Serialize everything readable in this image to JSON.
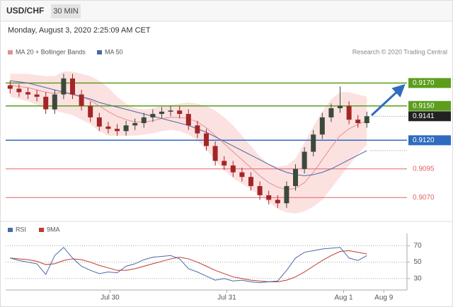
{
  "header": {
    "symbol": "USD/CHF",
    "interval": "30 MIN",
    "timestamp": "Monday, August 3, 2020 2:25:09 AM CET",
    "credit": "Research © 2020 Trading Central"
  },
  "chart_data": [
    {
      "type": "candlestick",
      "xlim": [
        -0.5,
        44.5
      ],
      "ylim": [
        0.9051,
        0.919
      ],
      "up_color": "#3b4a3b",
      "down_color": "#a32626",
      "open": [
        0.9168,
        0.9165,
        0.9162,
        0.916,
        0.9158,
        0.9147,
        0.916,
        0.9174,
        0.916,
        0.915,
        0.914,
        0.9132,
        0.913,
        0.9128,
        0.9133,
        0.9135,
        0.914,
        0.9143,
        0.9145,
        0.9146,
        0.9143,
        0.9133,
        0.9126,
        0.9115,
        0.9102,
        0.9098,
        0.9092,
        0.9088,
        0.908,
        0.9072,
        0.9068,
        0.9065,
        0.908,
        0.9095,
        0.911,
        0.9125,
        0.914,
        0.9148,
        0.915,
        0.9138,
        0.9135
      ],
      "high": [
        0.9172,
        0.9169,
        0.9166,
        0.9164,
        0.9162,
        0.9164,
        0.9178,
        0.9178,
        0.9164,
        0.9154,
        0.9144,
        0.9136,
        0.9134,
        0.9137,
        0.9139,
        0.9144,
        0.9147,
        0.9149,
        0.915,
        0.915,
        0.9147,
        0.9137,
        0.913,
        0.9119,
        0.9106,
        0.9102,
        0.9096,
        0.9092,
        0.9084,
        0.9076,
        0.9072,
        0.9084,
        0.9099,
        0.9114,
        0.9129,
        0.9144,
        0.9152,
        0.9167,
        0.9154,
        0.9142,
        0.9145
      ],
      "low": [
        0.9161,
        0.9158,
        0.9156,
        0.9154,
        0.9143,
        0.9143,
        0.9156,
        0.9156,
        0.9146,
        0.9136,
        0.9128,
        0.9126,
        0.9124,
        0.9124,
        0.9129,
        0.9131,
        0.9136,
        0.9139,
        0.9141,
        0.9139,
        0.9129,
        0.9122,
        0.9111,
        0.9098,
        0.9094,
        0.9088,
        0.9084,
        0.9076,
        0.9068,
        0.9064,
        0.9061,
        0.9061,
        0.9076,
        0.9091,
        0.9106,
        0.9121,
        0.9136,
        0.9144,
        0.9134,
        0.9131,
        0.9131
      ],
      "close": [
        0.9165,
        0.9162,
        0.916,
        0.9158,
        0.9147,
        0.916,
        0.9174,
        0.916,
        0.915,
        0.914,
        0.9132,
        0.913,
        0.9128,
        0.9133,
        0.9135,
        0.914,
        0.9143,
        0.9145,
        0.9146,
        0.9143,
        0.9133,
        0.9126,
        0.9115,
        0.9102,
        0.9098,
        0.9092,
        0.9088,
        0.908,
        0.9072,
        0.9068,
        0.9065,
        0.908,
        0.9095,
        0.911,
        0.9125,
        0.914,
        0.9148,
        0.915,
        0.9138,
        0.9135,
        0.9141
      ],
      "overlays": [
        {
          "name": "MA 20 + Bollinger Bands",
          "color": "#e58f92",
          "band_color": "#fbd9d9",
          "values": [
            0.9168,
            0.9167,
            0.9166,
            0.9164,
            0.9162,
            0.9161,
            0.9162,
            0.9161,
            0.9158,
            0.9155,
            0.915,
            0.9145,
            0.9141,
            0.9138,
            0.9136,
            0.9136,
            0.9137,
            0.9139,
            0.914,
            0.914,
            0.9139,
            0.9136,
            0.9131,
            0.9124,
            0.9117,
            0.911,
            0.9103,
            0.9096,
            0.9089,
            0.9083,
            0.9079,
            0.9077,
            0.9078,
            0.9083,
            0.9092,
            0.9103,
            0.9114,
            0.9124,
            0.913,
            0.9134,
            0.9137
          ],
          "upper": [
            0.9178,
            0.9178,
            0.9178,
            0.9177,
            0.9176,
            0.9176,
            0.918,
            0.918,
            0.9178,
            0.9176,
            0.9172,
            0.9166,
            0.9158,
            0.9152,
            0.9148,
            0.9147,
            0.9148,
            0.915,
            0.9151,
            0.9152,
            0.9153,
            0.9152,
            0.915,
            0.9146,
            0.914,
            0.9133,
            0.9124,
            0.9115,
            0.9106,
            0.9099,
            0.9097,
            0.9098,
            0.9104,
            0.9118,
            0.9132,
            0.9145,
            0.9156,
            0.9162,
            0.9162,
            0.916,
            0.9158
          ],
          "lower": [
            0.9158,
            0.9156,
            0.9154,
            0.9151,
            0.9148,
            0.9146,
            0.9144,
            0.9142,
            0.9138,
            0.9134,
            0.9128,
            0.9124,
            0.9124,
            0.9124,
            0.9124,
            0.9125,
            0.9126,
            0.9128,
            0.9129,
            0.9128,
            0.9125,
            0.912,
            0.9112,
            0.9102,
            0.9094,
            0.9087,
            0.9082,
            0.9077,
            0.9072,
            0.9066,
            0.906,
            0.9057,
            0.9056,
            0.9058,
            0.9062,
            0.9068,
            0.9078,
            0.9088,
            0.9098,
            0.9108,
            0.9116
          ]
        },
        {
          "name": "MA 50",
          "color": "#4a6aa5",
          "values": [
            0.9172,
            0.9171,
            0.917,
            0.9168,
            0.9166,
            0.9164,
            0.9162,
            0.916,
            0.9158,
            0.9156,
            0.9153,
            0.9151,
            0.9149,
            0.9147,
            0.9145,
            0.9143,
            0.9141,
            0.9139,
            0.9137,
            0.9135,
            0.9133,
            0.913,
            0.9127,
            0.9123,
            0.9119,
            0.9115,
            0.9111,
            0.9107,
            0.9103,
            0.9099,
            0.9095,
            0.9092,
            0.909,
            0.9089,
            0.909,
            0.9092,
            0.9095,
            0.9099,
            0.9103,
            0.9107,
            0.9111
          ]
        }
      ],
      "levels": [
        {
          "value": 0.917,
          "label": "0.9170",
          "color": "#5b9e1c",
          "boxed": true
        },
        {
          "value": 0.915,
          "label": "0.9150",
          "color": "#5b9e1c",
          "boxed": true
        },
        {
          "value": 0.912,
          "label": "0.9120",
          "color": "#2f6bbf",
          "boxed": true
        },
        {
          "value": 0.9095,
          "label": "0.9095",
          "color": "#e06666",
          "boxed": false
        },
        {
          "value": 0.907,
          "label": "0.9070",
          "color": "#e06666",
          "boxed": false
        }
      ],
      "last_price": 0.9141,
      "last_price_color": "#222222"
    },
    {
      "type": "line",
      "xlim": [
        -0.5,
        44.5
      ],
      "ylim": [
        16,
        85
      ],
      "yticks": [
        70,
        50,
        30
      ],
      "xticks": [
        {
          "value": 11.2,
          "label": "Jul 30"
        },
        {
          "value": 24.3,
          "label": "Jul 31"
        },
        {
          "value": 37.4,
          "label": "Aug 1"
        },
        {
          "value": 41.9,
          "label": "Aug 9"
        }
      ],
      "series": [
        {
          "name": "RSI",
          "color": "#4a6aa5",
          "values": [
            55,
            52,
            50,
            48,
            35,
            58,
            68,
            55,
            45,
            40,
            36,
            38,
            37,
            45,
            48,
            53,
            56,
            57,
            58,
            54,
            42,
            38,
            33,
            28,
            30,
            27,
            28,
            26,
            25,
            26,
            27,
            40,
            55,
            62,
            64,
            66,
            67,
            68,
            55,
            52,
            58
          ]
        },
        {
          "name": "9MA",
          "color": "#c0392b",
          "values": [
            55,
            54,
            53,
            51,
            47,
            48,
            52,
            54,
            53,
            50,
            46,
            43,
            40,
            40,
            42,
            45,
            48,
            51,
            54,
            56,
            54,
            50,
            45,
            40,
            36,
            32,
            30,
            28,
            27,
            26,
            26,
            28,
            32,
            38,
            45,
            52,
            58,
            63,
            64,
            62,
            60
          ]
        }
      ]
    }
  ]
}
